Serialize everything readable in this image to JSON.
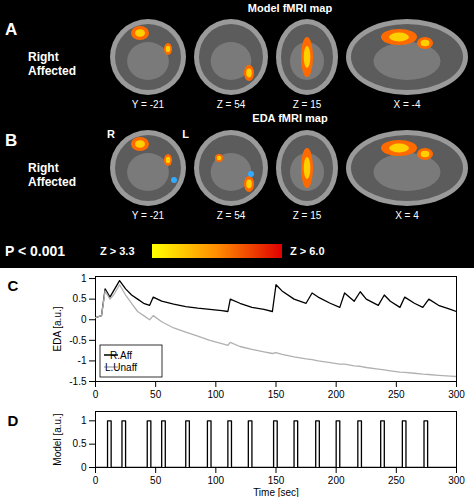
{
  "figure": {
    "panels": [
      {
        "letter": "A",
        "title": "Model fMRI map",
        "label": "Right Affected",
        "slices": [
          "Y = -21",
          "Z = 54",
          "Z = 15",
          "X = -4"
        ]
      },
      {
        "letter": "B",
        "title": "EDA fMRI map",
        "label": "Right Affected",
        "slices": [
          "Y = -21",
          "Z = 54",
          "Z = 15",
          "X = 4"
        ],
        "side_labels": [
          "R",
          "L"
        ]
      }
    ],
    "threshold": "P < 0.001",
    "colorbar": {
      "low_label": "Z > 3.3",
      "high_label": "Z > 6.0"
    }
  },
  "chart_data": [
    {
      "type": "line",
      "panel": "C",
      "ylabel": "EDA [a.u.]",
      "x": [
        0,
        5,
        8,
        12,
        15,
        20,
        25,
        30,
        35,
        40,
        45,
        48,
        55,
        65,
        75,
        85,
        95,
        105,
        110,
        112,
        120,
        130,
        140,
        147,
        150,
        155,
        165,
        175,
        180,
        185,
        195,
        203,
        207,
        215,
        220,
        225,
        235,
        240,
        245,
        253,
        257,
        265,
        272,
        277,
        285,
        295,
        300
      ],
      "series": [
        {
          "name": "R.Aff",
          "color": "#000000",
          "values": [
            0.05,
            0.1,
            0.75,
            0.55,
            0.7,
            0.95,
            0.75,
            0.6,
            0.5,
            0.4,
            0.35,
            0.55,
            0.45,
            0.38,
            0.32,
            0.28,
            0.25,
            0.22,
            0.2,
            0.5,
            0.4,
            0.3,
            0.25,
            0.2,
            0.85,
            0.7,
            0.5,
            0.4,
            0.65,
            0.55,
            0.4,
            0.3,
            0.65,
            0.45,
            0.68,
            0.5,
            0.35,
            0.6,
            0.45,
            0.3,
            0.55,
            0.4,
            0.3,
            0.5,
            0.35,
            0.25,
            0.2
          ]
        },
        {
          "name": "L.Unaff",
          "color": "#b0b0b0",
          "values": [
            0.05,
            0.1,
            0.7,
            0.5,
            0.6,
            0.85,
            0.6,
            0.4,
            0.2,
            0.1,
            0.0,
            0.1,
            -0.05,
            -0.2,
            -0.3,
            -0.4,
            -0.5,
            -0.58,
            -0.62,
            -0.55,
            -0.65,
            -0.72,
            -0.78,
            -0.82,
            -0.8,
            -0.84,
            -0.9,
            -0.95,
            -0.97,
            -1.0,
            -1.04,
            -1.08,
            -1.08,
            -1.12,
            -1.13,
            -1.16,
            -1.2,
            -1.22,
            -1.24,
            -1.27,
            -1.28,
            -1.3,
            -1.32,
            -1.33,
            -1.35,
            -1.37,
            -1.38
          ]
        }
      ],
      "xlim": [
        0,
        300
      ],
      "xticks": [
        0,
        50,
        100,
        150,
        200,
        250,
        300
      ],
      "ylim": [
        -1.5,
        1.05
      ],
      "yticks": [
        -1.5,
        -1,
        -0.5,
        0,
        0.5,
        1
      ],
      "legend": "bottom-left"
    },
    {
      "type": "line",
      "panel": "D",
      "ylabel": "Model [a.u.]",
      "xlabel": "Time [sec]",
      "color": "#000000",
      "x": [
        0,
        10,
        10,
        13,
        13,
        22,
        22,
        25,
        25,
        43,
        43,
        46,
        46,
        55,
        55,
        58,
        58,
        75,
        75,
        78,
        78,
        93,
        93,
        96,
        96,
        110,
        110,
        113,
        113,
        127,
        127,
        130,
        130,
        148,
        148,
        151,
        151,
        165,
        165,
        168,
        168,
        183,
        183,
        186,
        186,
        200,
        200,
        203,
        203,
        218,
        218,
        221,
        221,
        237,
        237,
        240,
        240,
        255,
        255,
        258,
        258,
        273,
        273,
        276,
        276,
        300
      ],
      "values": [
        0,
        0,
        1,
        1,
        0,
        0,
        1,
        1,
        0,
        0,
        1,
        1,
        0,
        0,
        1,
        1,
        0,
        0,
        1,
        1,
        0,
        0,
        1,
        1,
        0,
        0,
        1,
        1,
        0,
        0,
        1,
        1,
        0,
        0,
        1,
        1,
        0,
        0,
        1,
        1,
        0,
        0,
        1,
        1,
        0,
        0,
        1,
        1,
        0,
        0,
        1,
        1,
        0,
        0,
        1,
        1,
        0,
        0,
        1,
        1,
        0,
        0,
        1,
        1,
        0,
        0
      ],
      "xlim": [
        0,
        300
      ],
      "xticks": [
        0,
        50,
        100,
        150,
        200,
        250,
        300
      ],
      "ylim": [
        0,
        1.2
      ],
      "yticks": [
        0,
        0.5,
        1
      ]
    }
  ]
}
